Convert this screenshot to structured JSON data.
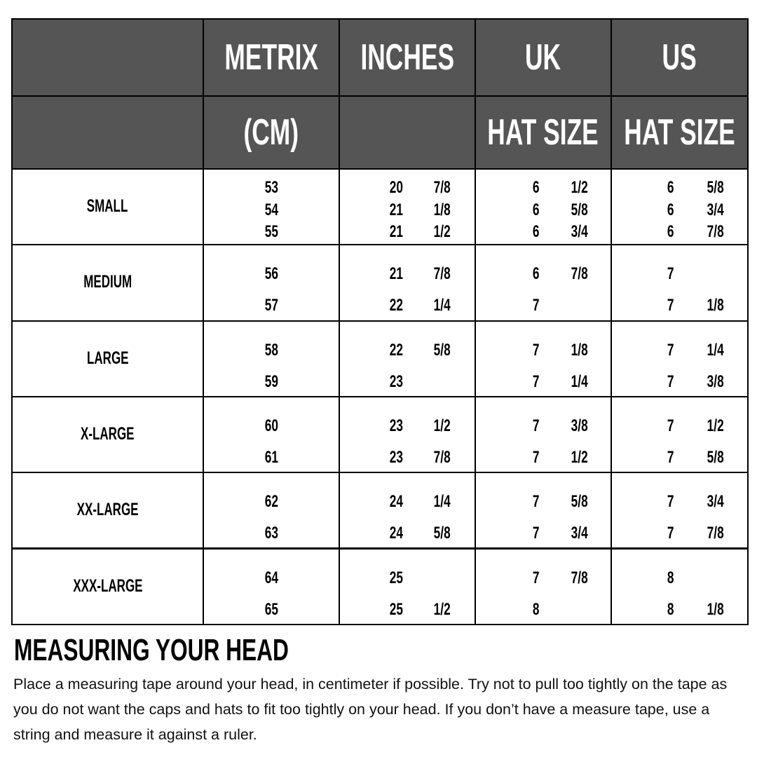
{
  "header": {
    "row1": [
      "",
      "METRIX",
      "INCHES",
      "UK",
      "US"
    ],
    "row2": [
      "",
      "(CM)",
      "",
      "HAT SIZE",
      "HAT SIZE"
    ]
  },
  "rows": [
    {
      "size": "SMALL",
      "cm": [
        "53",
        "54",
        "55"
      ],
      "inches": [
        [
          "20",
          "7/8"
        ],
        [
          "21",
          "1/8"
        ],
        [
          "21",
          "1/2"
        ]
      ],
      "uk": [
        [
          "6",
          "1/2"
        ],
        [
          "6",
          "5/8"
        ],
        [
          "6",
          "3/4"
        ]
      ],
      "us": [
        [
          "6",
          "5/8"
        ],
        [
          "6",
          "3/4"
        ],
        [
          "6",
          "7/8"
        ]
      ]
    },
    {
      "size": "MEDIUM",
      "cm": [
        "56",
        "57"
      ],
      "inches": [
        [
          "21",
          "7/8"
        ],
        [
          "22",
          "1/4"
        ]
      ],
      "uk": [
        [
          "6",
          "7/8"
        ],
        [
          "7",
          ""
        ]
      ],
      "us": [
        [
          "7",
          ""
        ],
        [
          "7",
          "1/8"
        ]
      ]
    },
    {
      "size": "LARGE",
      "cm": [
        "58",
        "59"
      ],
      "inches": [
        [
          "22",
          "5/8"
        ],
        [
          "23",
          ""
        ]
      ],
      "uk": [
        [
          "7",
          "1/8"
        ],
        [
          "7",
          "1/4"
        ]
      ],
      "us": [
        [
          "7",
          "1/4"
        ],
        [
          "7",
          "3/8"
        ]
      ]
    },
    {
      "size": "X-LARGE",
      "cm": [
        "60",
        "61"
      ],
      "inches": [
        [
          "23",
          "1/2"
        ],
        [
          "23",
          "7/8"
        ]
      ],
      "uk": [
        [
          "7",
          "3/8"
        ],
        [
          "7",
          "1/2"
        ]
      ],
      "us": [
        [
          "7",
          "1/2"
        ],
        [
          "7",
          "5/8"
        ]
      ]
    },
    {
      "size": "XX-LARGE",
      "cm": [
        "62",
        "63"
      ],
      "inches": [
        [
          "24",
          "1/4"
        ],
        [
          "24",
          "5/8"
        ]
      ],
      "uk": [
        [
          "7",
          "5/8"
        ],
        [
          "7",
          "3/4"
        ]
      ],
      "us": [
        [
          "7",
          "3/4"
        ],
        [
          "7",
          "7/8"
        ]
      ]
    },
    {
      "size": "XXX-LARGE",
      "cm": [
        "64",
        "65"
      ],
      "inches": [
        [
          "25",
          ""
        ],
        [
          "25",
          "1/2"
        ]
      ],
      "uk": [
        [
          "7",
          "7/8"
        ],
        [
          "8",
          ""
        ]
      ],
      "us": [
        [
          "8",
          ""
        ],
        [
          "8",
          "1/8"
        ]
      ]
    }
  ],
  "section": {
    "title": "MEASURING YOUR HEAD",
    "body": "Place a measuring tape around your head, in centimeter if possible. Try not to pull too tightly on the tape as you do not want the caps and hats to fit too tightly on your head. If you don’t have a measure tape, use a string and measure it against a ruler."
  },
  "colors": {
    "header_bg": "#555555",
    "header_text": "#ffffff",
    "border": "#000000"
  }
}
